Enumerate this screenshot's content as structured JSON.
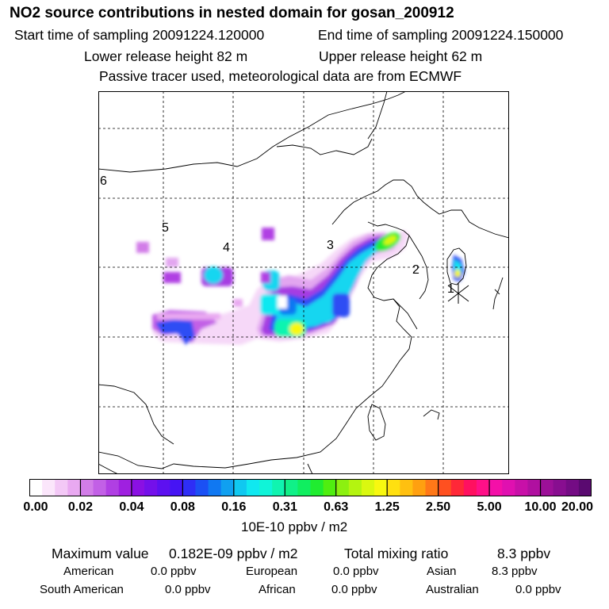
{
  "header": {
    "title": "NO2 source contributions in nested domain for gosan_200912",
    "start_label": "Start time of sampling 20091224.120000",
    "end_label": "End time of sampling 20091224.150000",
    "lower_label": "Lower release height   82 m",
    "upper_label": "Upper release height   62 m",
    "note": "Passive tracer used, meteorological data are from ECMWF"
  },
  "map": {
    "region_labels": [
      "1",
      "2",
      "3",
      "4",
      "5",
      "6"
    ],
    "release_site_marker": "receptor-star-icon"
  },
  "colorbar": {
    "tick_labels": [
      "0.00",
      "0.02",
      "0.04",
      "0.08",
      "0.16",
      "0.31",
      "0.63",
      "1.25",
      "2.50",
      "5.00",
      "10.00",
      "20.00"
    ],
    "unit": "10E-10 ppbv / m2",
    "colors": [
      "#ffffff",
      "#fbe6fb",
      "#f3c8f6",
      "#e9a9f1",
      "#d27de8",
      "#c260e6",
      "#b03fe3",
      "#9f20e0",
      "#8a10e3",
      "#7410ea",
      "#5d10f0",
      "#4614f4",
      "#2e2ef6",
      "#1b50f4",
      "#1078f2",
      "#10a0f0",
      "#10c8f0",
      "#10e8f0",
      "#10f4d8",
      "#10f4b0",
      "#10f088",
      "#10ee60",
      "#20ec30",
      "#50ee10",
      "#8cf010",
      "#b4f410",
      "#daf810",
      "#f8f810",
      "#ffe010",
      "#ffc010",
      "#ffa010",
      "#ff7818",
      "#ff5020",
      "#ff2838",
      "#ff1060",
      "#ff1088",
      "#f410a8",
      "#e010b0",
      "#c810a8",
      "#b010a0",
      "#9c1098",
      "#880e90",
      "#740c84",
      "#5a0a70"
    ]
  },
  "summary": {
    "max_label": "Maximum value",
    "max_value": "0.182E-09 ppbv / m2",
    "total_label": "Total mixing ratio",
    "total_value": "8.3 ppbv",
    "sources": [
      {
        "name": "American",
        "value": "0.0 ppbv"
      },
      {
        "name": "European",
        "value": "0.0 ppbv"
      },
      {
        "name": "Asian",
        "value": "8.3 ppbv"
      },
      {
        "name": "South American",
        "value": "0.0 ppbv"
      },
      {
        "name": "African",
        "value": "0.0 ppbv"
      },
      {
        "name": "Australian",
        "value": "0.0 ppbv"
      }
    ]
  }
}
